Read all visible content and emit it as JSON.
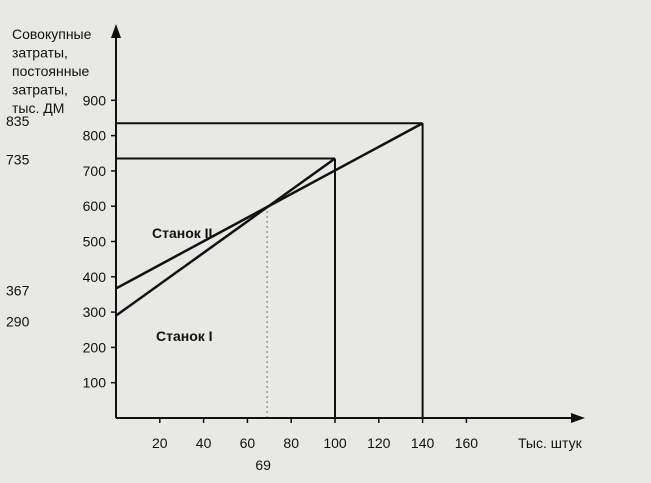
{
  "chart_data": {
    "type": "line",
    "ylabel_lines": [
      "Совокупные",
      "затраты,",
      "постоянные",
      "затраты,",
      "тыс. ДМ"
    ],
    "xlabel": "Тыс. штук",
    "xlim": [
      0,
      200
    ],
    "ylim": [
      0,
      1000
    ],
    "x_ticks": [
      20,
      40,
      60,
      80,
      100,
      120,
      140,
      160
    ],
    "y_ticks": [
      100,
      200,
      300,
      400,
      500,
      600,
      700,
      800,
      900
    ],
    "y_extra_ticks": [
      {
        "label": "835",
        "value": 835
      },
      {
        "label": "735",
        "value": 735
      },
      {
        "label": "367",
        "value": 367
      },
      {
        "label": "290",
        "value": 290
      }
    ],
    "x_extra_ticks": [
      {
        "label": "69",
        "value": 69
      }
    ],
    "series": [
      {
        "name": "Станок II",
        "x": [
          0,
          140
        ],
        "y": [
          367,
          835
        ]
      },
      {
        "name": "Станок I",
        "x": [
          0,
          100
        ],
        "y": [
          290,
          735
        ]
      }
    ],
    "reference_lines": [
      {
        "x": [
          100,
          100
        ],
        "y": [
          0,
          735
        ]
      },
      {
        "x": [
          0,
          100
        ],
        "y": [
          735,
          735
        ]
      },
      {
        "x": [
          140,
          140
        ],
        "y": [
          0,
          835
        ]
      },
      {
        "x": [
          0,
          140
        ],
        "y": [
          835,
          835
        ]
      }
    ],
    "dashed_reference": {
      "x": [
        69,
        69
      ],
      "y": [
        0,
        597
      ]
    },
    "grid": false
  }
}
